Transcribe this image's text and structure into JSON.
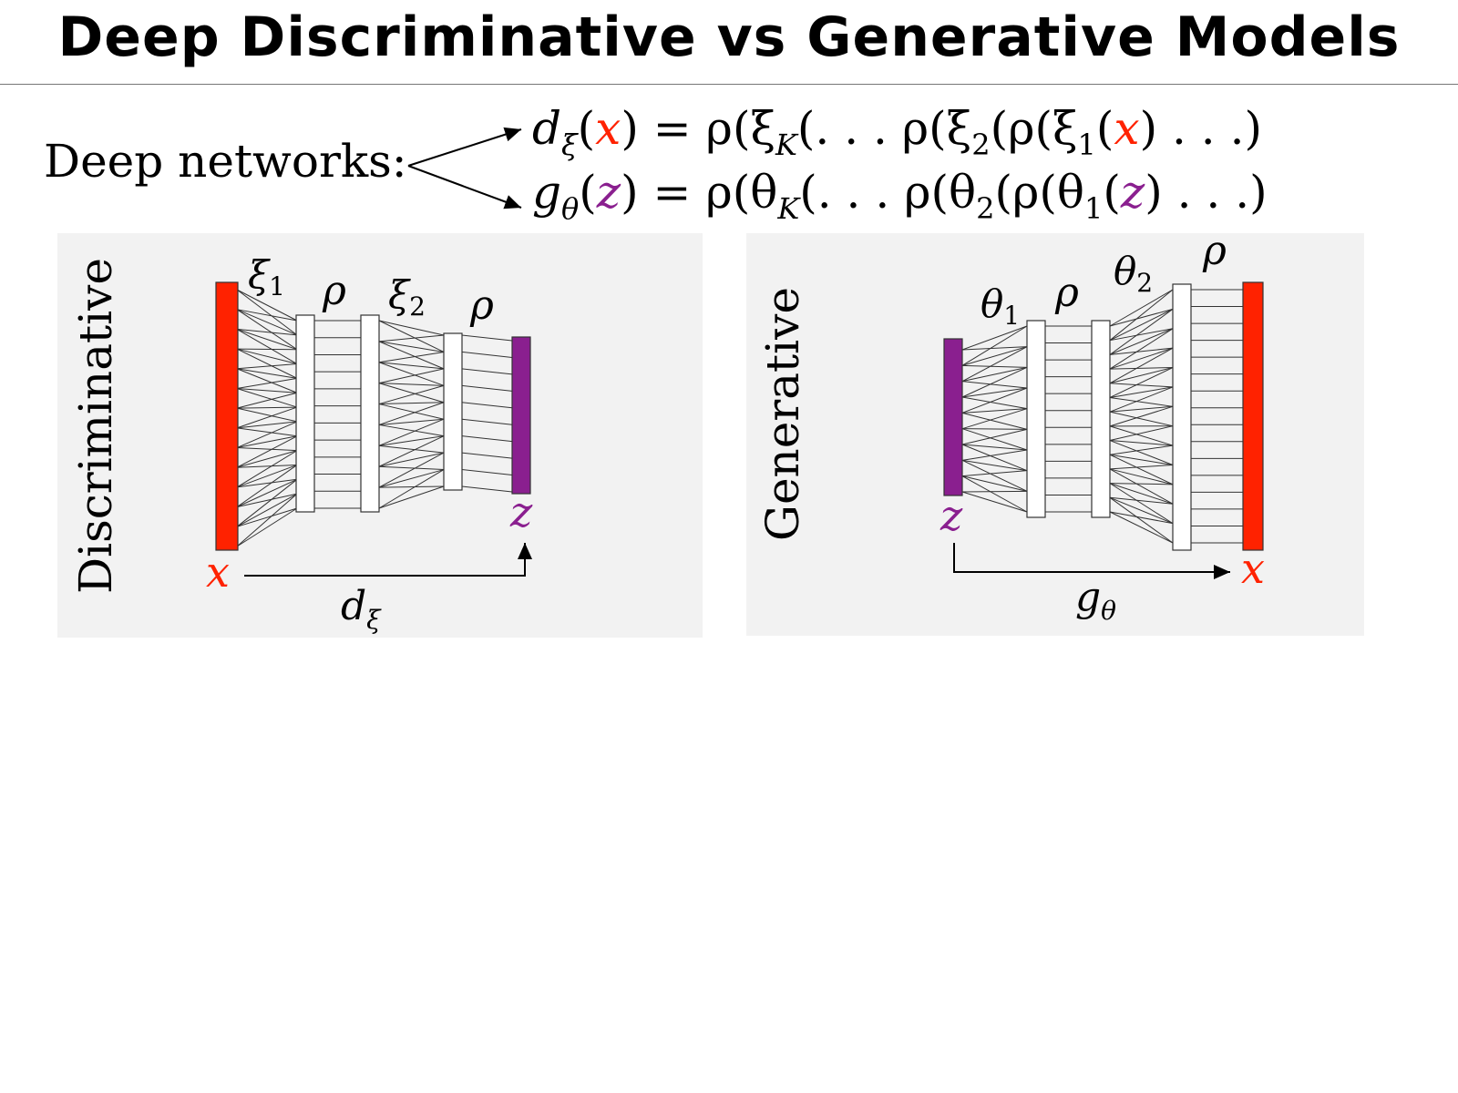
{
  "slide": {
    "title": "Deep Discriminative vs Generative Models"
  },
  "intro": {
    "label": "Deep networks:"
  },
  "equations": {
    "disc": {
      "lhs_fn": "d",
      "lhs_sub": "ξ",
      "lhs_arg": "x",
      "rhs_pre": "= ρ(ξ",
      "rhs_K": "K",
      "rhs_mid": "(. . . ρ(ξ",
      "rhs_2": "2",
      "rhs_mid2": "(ρ(ξ",
      "rhs_1": "1",
      "rhs_arg": "x",
      "rhs_post": ") . . .)"
    },
    "gen": {
      "lhs_fn": "g",
      "lhs_sub": "θ",
      "lhs_arg": "z",
      "rhs_pre": "= ρ(θ",
      "rhs_K": "K",
      "rhs_mid": "(. . . ρ(θ",
      "rhs_2": "2",
      "rhs_mid2": "(ρ(θ",
      "rhs_1": "1",
      "rhs_arg": "z",
      "rhs_post": ") . . .)"
    }
  },
  "discriminative": {
    "side_label": "Discriminative",
    "layer_labels": {
      "w1": "ξ",
      "w1_sub": "1",
      "a1": "ρ",
      "w2": "ξ",
      "w2_sub": "2",
      "a2": "ρ"
    },
    "input_label": "x",
    "output_label": "z",
    "map_label": "d",
    "map_sub": "ξ"
  },
  "generative": {
    "side_label": "Generative",
    "layer_labels": {
      "w1": "θ",
      "w1_sub": "1",
      "a1": "ρ",
      "w2": "θ",
      "w2_sub": "2",
      "a2": "ρ"
    },
    "input_label": "z",
    "output_label": "x",
    "map_label": "g",
    "map_sub": "θ"
  },
  "colors": {
    "x": "#ff2200",
    "z": "#8a1f8f",
    "panel": "#f2f2f2"
  }
}
